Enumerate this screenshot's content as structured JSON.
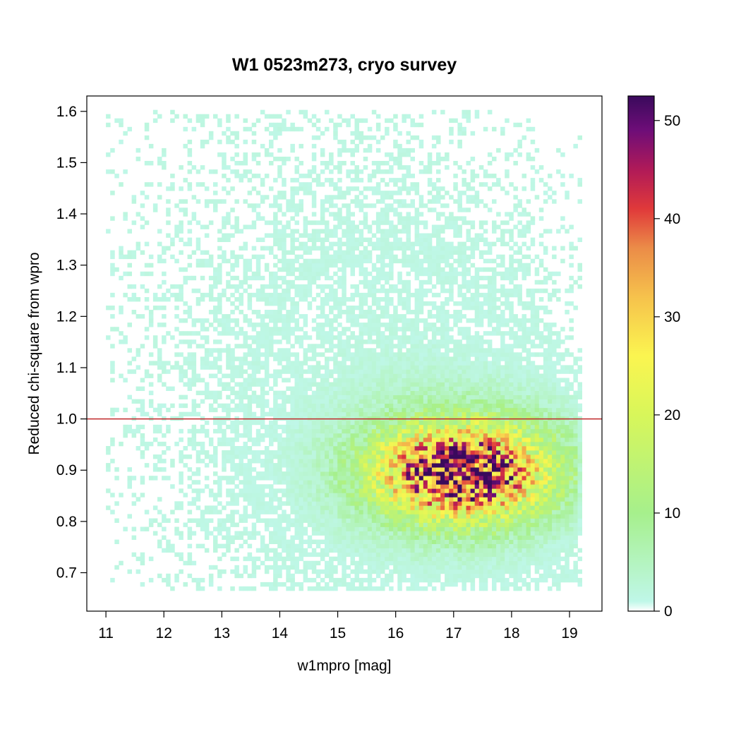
{
  "chart_data": {
    "type": "heatmap",
    "title": "W1 0523m273, cryo survey",
    "xlabel": "w1mpro [mag]",
    "ylabel": "Reduced chi-square from wpro",
    "xlim": [
      10.67,
      19.56
    ],
    "ylim": [
      0.625,
      1.63
    ],
    "x_ticks": [
      11,
      12,
      13,
      14,
      15,
      16,
      17,
      18,
      19
    ],
    "y_ticks": [
      0.7,
      0.8,
      0.9,
      1.0,
      1.1,
      1.2,
      1.3,
      1.4,
      1.5,
      1.6
    ],
    "y_tick_labels": [
      "0.7",
      "0.8",
      "0.9",
      "1.0",
      "1.1",
      "1.2",
      "1.3",
      "1.4",
      "1.5",
      "1.6"
    ],
    "reference_line": {
      "y": 1.0,
      "color": "#c0282a"
    },
    "bin_size": {
      "x": 0.074,
      "y": 0.0083
    },
    "data_extent": {
      "x": [
        11.0,
        19.15
      ],
      "y": [
        0.665,
        1.6
      ]
    },
    "density_peak": {
      "x": 17.1,
      "y": 0.9,
      "max_count": 52
    },
    "colorbar": {
      "min": 0,
      "max": 52.5,
      "ticks": [
        0,
        10,
        20,
        30,
        40,
        50
      ],
      "colors": [
        "#ffffff",
        "#bff7e8",
        "#a6f08c",
        "#d8f65a",
        "#fbf550",
        "#f6c24c",
        "#eb8c48",
        "#e0393a",
        "#b01a58",
        "#6e0d78",
        "#3a0a5c"
      ],
      "color_stops": [
        0,
        1,
        10,
        20,
        26,
        32,
        37,
        41,
        45,
        49,
        52.5
      ]
    }
  }
}
